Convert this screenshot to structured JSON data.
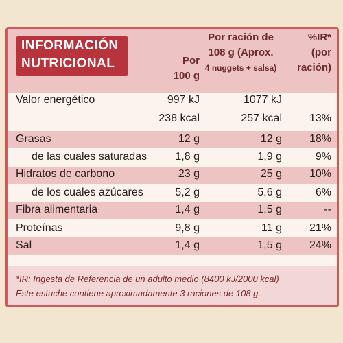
{
  "header": {
    "title": [
      "INFORMACIÓN",
      "NUTRICIONAL"
    ],
    "columns": [
      [
        "Por",
        "100 g"
      ],
      [
        "Por ración de",
        "108 g (Aprox.",
        "4 nuggets + salsa)"
      ],
      [
        "%IR*",
        "(por",
        "ración)"
      ]
    ]
  },
  "table": {
    "rows": [
      {
        "label": "Valor energético",
        "per_100g": "997 kJ",
        "per_serving": "1077 kJ"
      },
      {
        "per_100g": "238 kcal",
        "per_serving": "257 kcal",
        "ri": "13%"
      },
      {
        "label": "Grasas",
        "per_100g": "12 g",
        "per_serving": "12 g",
        "ri": "18%"
      },
      {
        "label": "de las cuales saturadas",
        "per_100g": "1,8 g",
        "per_serving": "1,9 g",
        "ri": "9%"
      },
      {
        "label": "Hidratos de carbono",
        "per_100g": "23 g",
        "per_serving": "25 g",
        "ri": "10%"
      },
      {
        "label": "de los cuales azúcares",
        "per_100g": "5,2 g",
        "per_serving": "5,6 g",
        "ri": "6%"
      },
      {
        "label": "Fibra alimentaria",
        "per_100g": "1,4 g",
        "per_serving": "1,5 g",
        "ri": "--"
      },
      {
        "label": "Proteínas",
        "per_100g": "9,8 g",
        "per_serving": "11 g",
        "ri": "21%"
      },
      {
        "label": "Sal",
        "per_100g": "1,4 g",
        "per_serving": "1,5 g",
        "ri": "24%"
      }
    ]
  },
  "footnotes": [
    "*IR: Ingesta de Referencia de un adulto medio (8400 kJ/2000 kcal)",
    "Este estuche contiene aproximadamente 3 raciones de 108 g."
  ]
}
